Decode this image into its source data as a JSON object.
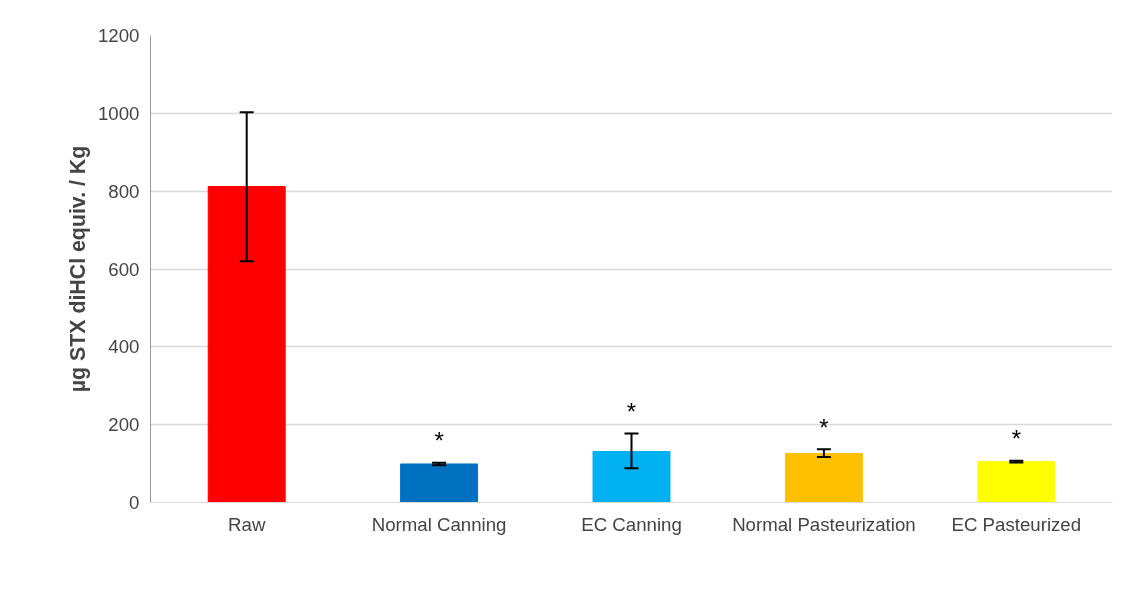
{
  "chart_data": {
    "type": "bar",
    "ylabel": "µg STX diHCl equiv. / Kg",
    "categories": [
      "Raw",
      "Normal Canning",
      "EC Canning",
      "Normal Pasteurization",
      "EC Pasteurized"
    ],
    "values": [
      812,
      99,
      131,
      126,
      105
    ],
    "colors": [
      "#ff0000",
      "#0070c0",
      "#00b0f0",
      "#ffc000",
      "#ffff00"
    ],
    "errors": [
      [
        620,
        1003
      ],
      [
        96,
        102
      ],
      [
        88,
        177
      ],
      [
        117,
        137
      ],
      [
        103,
        107
      ]
    ],
    "ylim": [
      0,
      1200
    ],
    "yticks": [
      0,
      200,
      400,
      600,
      800,
      1000,
      1200
    ],
    "grid": "y",
    "annotations": [
      "*",
      "*",
      "*",
      "*"
    ]
  }
}
